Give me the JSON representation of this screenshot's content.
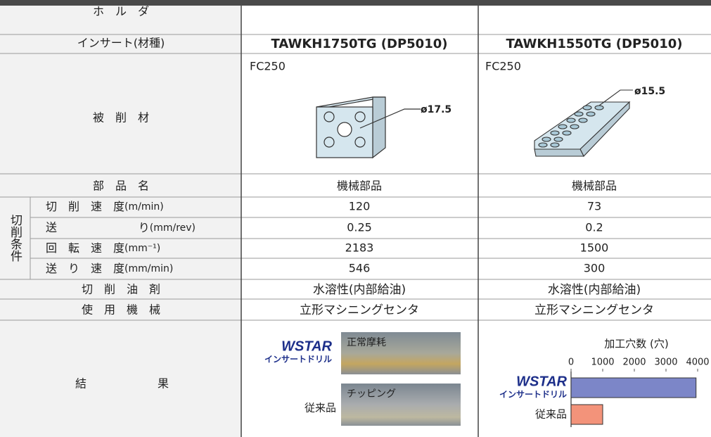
{
  "header": {
    "holder_label": "ホ　ル　ダ",
    "insert_label": "インサート(材種)",
    "inserts": [
      "TAWKH1750TG (DP5010)",
      "TAWKH1550TG (DP5010)"
    ]
  },
  "workpiece": {
    "label": "被　削　材",
    "materials": [
      "FC250",
      "FC250"
    ],
    "diameters": [
      "ø17.5",
      "ø15.5"
    ]
  },
  "part": {
    "label": "部　品　名",
    "values": [
      "機械部品",
      "機械部品"
    ]
  },
  "conditions": {
    "group_label": "切削条件",
    "rows": [
      {
        "label": "切　削　速　度",
        "unit": "(m/min)",
        "values": [
          120,
          73
        ]
      },
      {
        "label": "送",
        "label_end": "り",
        "unit": "(mm/rev)",
        "values": [
          0.25,
          0.2
        ]
      },
      {
        "label": "回　転　速　度",
        "unit": "(mm⁻¹)",
        "values": [
          2183,
          1500
        ]
      },
      {
        "label": "送　り　速　度",
        "unit": "(mm/min)",
        "values": [
          546,
          300
        ]
      }
    ]
  },
  "coolant": {
    "label": "切　削　油　剤",
    "values": [
      "水溶性(内部給油)",
      "水溶性(内部給油)"
    ]
  },
  "machine": {
    "label": "使　用　機　械",
    "values": [
      "立形マシニングセンタ",
      "立形マシニングセンタ"
    ]
  },
  "results": {
    "label_start": "結",
    "label_end": "果",
    "logo": "WSTAR",
    "logo_sub": "インサートドリル",
    "photo_labels": [
      "正常摩耗",
      "チッピング"
    ],
    "conventional": "従来品"
  },
  "chart_data": {
    "type": "bar",
    "orientation": "horizontal",
    "title": "加工穴数 (穴)",
    "categories": [
      "WSTAR",
      "従来品"
    ],
    "category_subtitle": "インサートドリル",
    "values": [
      3950,
      1000
    ],
    "colors": [
      "#7c86c8",
      "#f3937a"
    ],
    "xlim": [
      0,
      4000
    ],
    "xticks": [
      0,
      1000,
      2000,
      3000,
      4000
    ]
  }
}
